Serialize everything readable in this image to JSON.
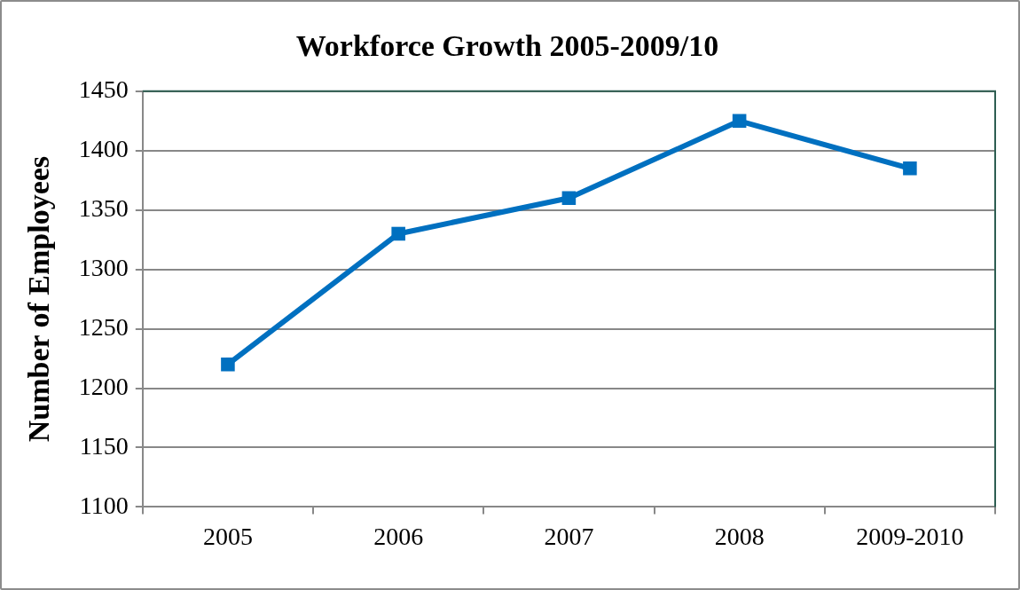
{
  "chart_data": {
    "type": "line",
    "title": "Workforce Growth 2005-2009/10",
    "ylabel": "Number of Employees",
    "categories": [
      "2005",
      "2006",
      "2007",
      "2008",
      "2009-2010"
    ],
    "series": [
      {
        "color": "#0070c0",
        "values": [
          1220,
          1330,
          1360,
          1425,
          1385
        ]
      }
    ],
    "ylim": [
      1100,
      1450
    ],
    "yticks": [
      1100,
      1150,
      1200,
      1250,
      1300,
      1350,
      1400,
      1450
    ],
    "grid": "y",
    "legend": false,
    "marker": "square",
    "line_style": "solid"
  }
}
